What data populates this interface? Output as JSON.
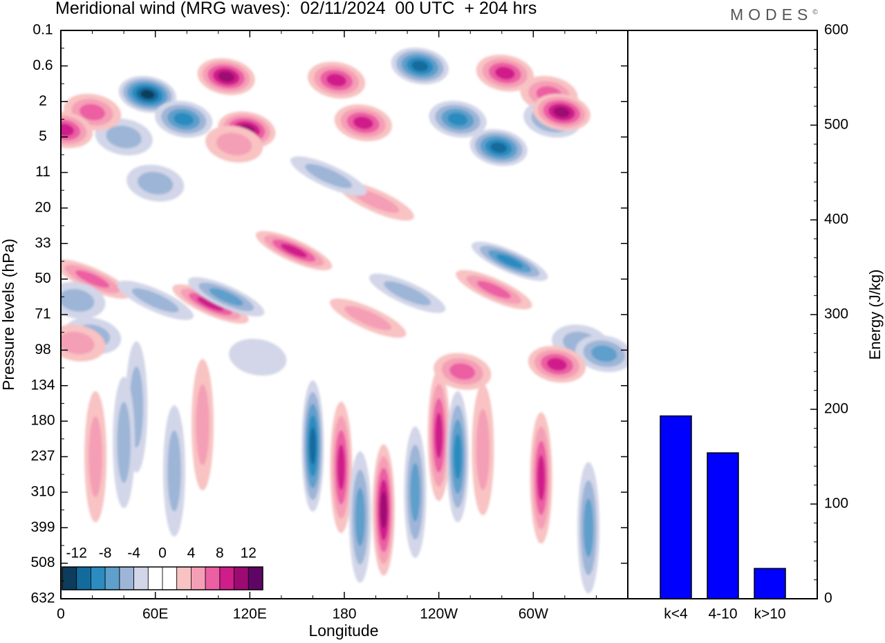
{
  "title": "Meridional wind (MRG waves):  02/11/2024  00 UTC  + 204 hrs",
  "brand": "MODES",
  "brand_mark": "©",
  "chart_data": [
    {
      "type": "heatmap",
      "variable": "Meridional wind",
      "xlabel": "Longitude",
      "ylabel": "Pressure levels (hPa)",
      "x_ticks": [
        "0",
        "60E",
        "120E",
        "180",
        "120W",
        "60W"
      ],
      "y_levels": [
        "0.1",
        "0.6",
        "2",
        "5",
        "11",
        "20",
        "33",
        "50",
        "71",
        "98",
        "134",
        "180",
        "237",
        "310",
        "399",
        "508",
        "632"
      ],
      "y_axis_inverted": true,
      "colorbar": {
        "labels": [
          "-12",
          "-8",
          "-4",
          "0",
          "4",
          "8",
          "12"
        ],
        "colors": [
          "#0d3d5c",
          "#136a9c",
          "#2c8bbf",
          "#5e9fcb",
          "#9db5d7",
          "#d2d6e8",
          "#ffffff",
          "#ffffff",
          "#f8c3c2",
          "#f59fb6",
          "#ec5fa3",
          "#cf1d8a",
          "#9c0a72",
          "#5e0565"
        ]
      },
      "features": [
        {
          "lon": 55,
          "lev": 1.8,
          "v": -11,
          "shape": "blob"
        },
        {
          "lon": 78,
          "lev": 2.5,
          "v": -7,
          "shape": "blob"
        },
        {
          "lon": 40,
          "lev": 3.0,
          "v": -4,
          "shape": "blob"
        },
        {
          "lon": 20,
          "lev": 2.3,
          "v": 6,
          "shape": "blob"
        },
        {
          "lon": 105,
          "lev": 1.3,
          "v": 10,
          "shape": "blob"
        },
        {
          "lon": 118,
          "lev": 2.8,
          "v": 9,
          "shape": "blob"
        },
        {
          "lon": 110,
          "lev": 3.2,
          "v": 4,
          "shape": "blob"
        },
        {
          "lon": 175,
          "lev": 1.4,
          "v": 7,
          "shape": "blob"
        },
        {
          "lon": 192,
          "lev": 2.6,
          "v": 8,
          "shape": "blob"
        },
        {
          "lon": 228,
          "lev": 1.0,
          "v": -10,
          "shape": "blob"
        },
        {
          "lon": 252,
          "lev": 2.5,
          "v": -8,
          "shape": "blob"
        },
        {
          "lon": 278,
          "lev": 3.3,
          "v": -9,
          "shape": "blob"
        },
        {
          "lon": 282,
          "lev": 1.2,
          "v": 7,
          "shape": "blob"
        },
        {
          "lon": 310,
          "lev": 1.8,
          "v": 5,
          "shape": "blob"
        },
        {
          "lon": 312,
          "lev": 2.5,
          "v": -6,
          "shape": "blob"
        },
        {
          "lon": 318,
          "lev": 2.3,
          "v": 10,
          "shape": "blob"
        },
        {
          "lon": 2,
          "lev": 2.8,
          "v": 8,
          "shape": "blob"
        },
        {
          "lon": 60,
          "lev": 4.3,
          "v": -3,
          "shape": "blob"
        },
        {
          "lon": 148,
          "lev": 6.2,
          "v": 7,
          "shape": "band"
        },
        {
          "lon": 200,
          "lev": 4.8,
          "v": 4,
          "shape": "band"
        },
        {
          "lon": 170,
          "lev": 4.1,
          "v": -3,
          "shape": "band"
        },
        {
          "lon": 285,
          "lev": 6.5,
          "v": -7,
          "shape": "band"
        },
        {
          "lon": 275,
          "lev": 7.3,
          "v": 5,
          "shape": "band"
        },
        {
          "lon": 20,
          "lev": 7.0,
          "v": 6,
          "shape": "band"
        },
        {
          "lon": 95,
          "lev": 7.7,
          "v": 8,
          "shape": "band"
        },
        {
          "lon": 105,
          "lev": 7.5,
          "v": -6,
          "shape": "band"
        },
        {
          "lon": 220,
          "lev": 7.4,
          "v": -3,
          "shape": "band"
        },
        {
          "lon": 195,
          "lev": 8.1,
          "v": 4,
          "shape": "band"
        },
        {
          "lon": 60,
          "lev": 7.6,
          "v": -3,
          "shape": "band"
        },
        {
          "lon": 10,
          "lev": 7.6,
          "v": -4,
          "shape": "blob"
        },
        {
          "lon": 20,
          "lev": 8.6,
          "v": -3,
          "shape": "blob"
        },
        {
          "lon": 330,
          "lev": 8.8,
          "v": -3,
          "shape": "blob"
        },
        {
          "lon": 345,
          "lev": 9.1,
          "v": -6,
          "shape": "blob"
        },
        {
          "lon": 315,
          "lev": 9.4,
          "v": 7,
          "shape": "blob"
        },
        {
          "lon": 255,
          "lev": 9.6,
          "v": 5,
          "shape": "blob"
        },
        {
          "lon": 125,
          "lev": 9.2,
          "v": -2,
          "shape": "blob"
        },
        {
          "lon": 10,
          "lev": 8.8,
          "v": 3,
          "shape": "blob"
        },
        {
          "lon": 160,
          "lev": 11.7,
          "v": -10,
          "shape": "column"
        },
        {
          "lon": 178,
          "lev": 12.3,
          "v": 7,
          "shape": "column"
        },
        {
          "lon": 190,
          "lev": 13.7,
          "v": -6,
          "shape": "column"
        },
        {
          "lon": 205,
          "lev": 13.5,
          "v": 9,
          "shape": "column"
        },
        {
          "lon": 225,
          "lev": 13.0,
          "v": -6,
          "shape": "column"
        },
        {
          "lon": 240,
          "lev": 11.4,
          "v": 8,
          "shape": "column"
        },
        {
          "lon": 252,
          "lev": 12.0,
          "v": -7,
          "shape": "column"
        },
        {
          "lon": 268,
          "lev": 11.8,
          "v": 4,
          "shape": "column"
        },
        {
          "lon": 305,
          "lev": 12.6,
          "v": 7,
          "shape": "column"
        },
        {
          "lon": 335,
          "lev": 14.0,
          "v": -5,
          "shape": "column"
        },
        {
          "lon": 90,
          "lev": 11.1,
          "v": 4,
          "shape": "column"
        },
        {
          "lon": 48,
          "lev": 10.6,
          "v": -3,
          "shape": "column"
        },
        {
          "lon": 40,
          "lev": 11.6,
          "v": -3,
          "shape": "column"
        },
        {
          "lon": 22,
          "lev": 12.0,
          "v": 3,
          "shape": "column"
        },
        {
          "lon": 72,
          "lev": 12.4,
          "v": -3,
          "shape": "column"
        }
      ]
    },
    {
      "type": "bar",
      "categories": [
        "k<4",
        "4-10",
        "k>10"
      ],
      "values": [
        193,
        154,
        32
      ],
      "ylabel": "Energy (J/kg)",
      "ylim": [
        0,
        600
      ],
      "y_ticks": [
        0,
        100,
        200,
        300,
        400,
        500,
        600
      ],
      "bar_color": "#0000ff"
    }
  ]
}
